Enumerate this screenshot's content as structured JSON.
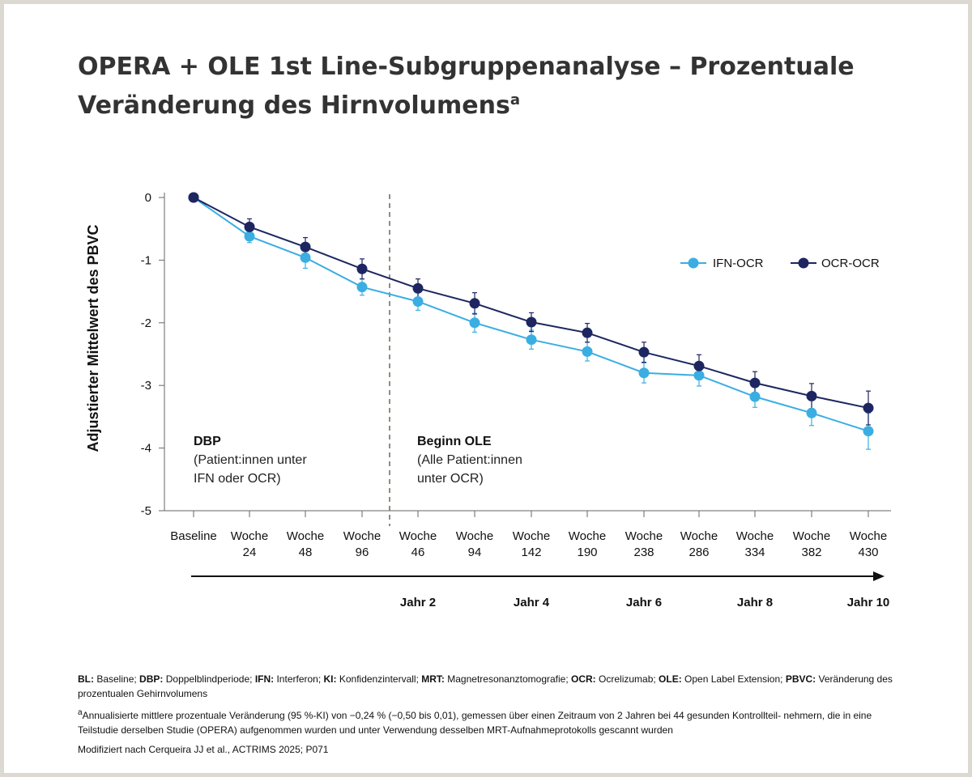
{
  "title_line1": "OPERA + OLE 1st Line-Subgruppenanalyse – Prozentuale",
  "title_line2": "Veränderung des Hirnvolumens",
  "title_sup": "a",
  "chart_data": {
    "type": "line",
    "ylabel": "Adjustierter Mittelwert des PBVC",
    "ylim": [
      -5,
      0
    ],
    "yticks": [
      "0",
      "-1",
      "-2",
      "-3",
      "-4",
      "-5"
    ],
    "ytick_values": [
      0,
      -1,
      -2,
      -3,
      -4,
      -5
    ],
    "categories": [
      [
        "Baseline"
      ],
      [
        "Woche",
        "24"
      ],
      [
        "Woche",
        "48"
      ],
      [
        "Woche",
        "96"
      ],
      [
        "Woche",
        "46"
      ],
      [
        "Woche",
        "94"
      ],
      [
        "Woche",
        "142"
      ],
      [
        "Woche",
        "190"
      ],
      [
        "Woche",
        "238"
      ],
      [
        "Woche",
        "286"
      ],
      [
        "Woche",
        "334"
      ],
      [
        "Woche",
        "382"
      ],
      [
        "Woche",
        "430"
      ]
    ],
    "series": [
      {
        "name": "IFN-OCR",
        "color": "#3aaee2",
        "values": [
          0,
          -0.62,
          -0.96,
          -1.43,
          -1.66,
          -2.0,
          -2.27,
          -2.46,
          -2.8,
          -2.84,
          -3.18,
          -3.44,
          -3.73
        ],
        "err": [
          0,
          0.1,
          0.17,
          0.13,
          0.14,
          0.15,
          0.15,
          0.15,
          0.16,
          0.17,
          0.17,
          0.2,
          0.29
        ]
      },
      {
        "name": "OCR-OCR",
        "color": "#1d2660",
        "values": [
          0,
          -0.47,
          -0.79,
          -1.14,
          -1.45,
          -1.69,
          -1.99,
          -2.16,
          -2.47,
          -2.69,
          -2.96,
          -3.17,
          -3.36
        ],
        "err": [
          0,
          0.13,
          0.15,
          0.16,
          0.15,
          0.17,
          0.15,
          0.15,
          0.16,
          0.18,
          0.18,
          0.2,
          0.27
        ]
      }
    ],
    "divider_after_index": 3,
    "annotations": {
      "dbp_title": "DBP",
      "dbp_line1": "(Patient:innen unter",
      "dbp_line2": "IFN oder OCR)",
      "ole_title": "Beginn OLE",
      "ole_line1": "(Alle Patient:innen",
      "ole_line2": "unter OCR)"
    },
    "year_labels": [
      {
        "label": "Jahr 2",
        "index": 4
      },
      {
        "label": "Jahr 4",
        "index": 6
      },
      {
        "label": "Jahr 6",
        "index": 8
      },
      {
        "label": "Jahr 8",
        "index": 10
      },
      {
        "label": "Jahr 10",
        "index": 12
      }
    ]
  },
  "footnotes": {
    "abbr": [
      {
        "term": "BL:",
        "def": " Baseline; "
      },
      {
        "term": "DBP:",
        "def": " Doppelblindperiode; "
      },
      {
        "term": "IFN:",
        "def": " Interferon; "
      },
      {
        "term": "KI:",
        "def": " Konfidenzintervall; "
      },
      {
        "term": "MRT:",
        "def": " Magnetresonanztomografie; "
      },
      {
        "term": "OCR:",
        "def": " Ocrelizumab; "
      },
      {
        "term": "OLE:",
        "def": " Open Label Extension; "
      },
      {
        "term": "PBVC:",
        "def": " Veränderung des prozentualen Gehirnvolumens"
      }
    ],
    "note_a_sup": "a",
    "note_a": "Annualisierte mittlere prozentuale Veränderung (95 %-KI) von −0,24 % (−0,50 bis 0,01), gemessen über einen Zeitraum von 2 Jahren bei 44 gesunden Kontrollteil- nehmern, die in eine Teilstudie derselben Studie (OPERA) aufgenommen wurden und unter Verwendung desselben MRT-Aufnahmeprotokolls gescannt wurden",
    "source": "Modifiziert nach Cerqueira JJ et al., ACTRIMS 2025; P071"
  }
}
